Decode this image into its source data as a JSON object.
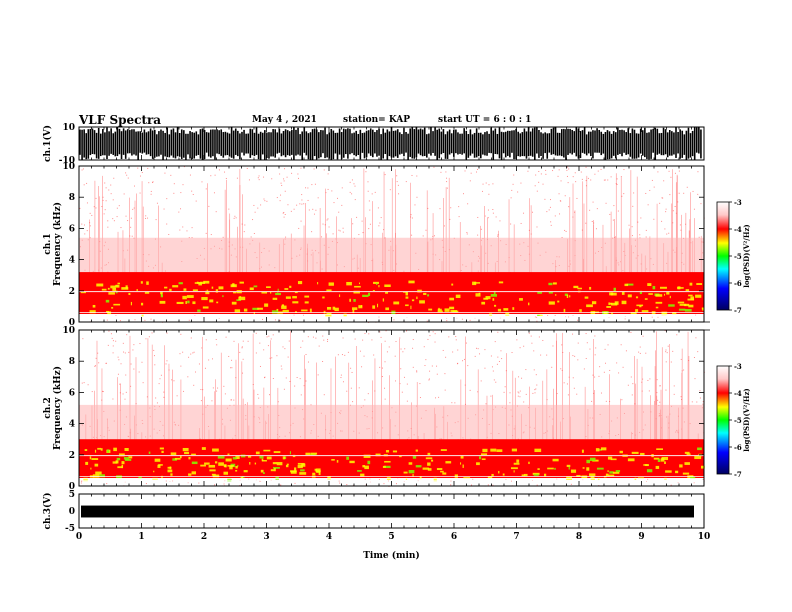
{
  "header": {
    "title": "VLF Spectra",
    "date": "May 4 , 2021",
    "station": "station= KAP",
    "start_time": "start UT =  6 : 0 : 1"
  },
  "chart_data": [
    {
      "type": "line",
      "name": "ch1-waveform",
      "ylabel": "ch.1(V)",
      "ylim": [
        -10,
        10
      ],
      "yticks": [
        "10",
        "-10"
      ],
      "xlim": [
        0,
        10
      ]
    },
    {
      "type": "heatmap",
      "name": "ch1-spectrogram",
      "ylabel_line1": "ch.1",
      "ylabel_line2": "Frequency (kHz)",
      "ylim": [
        0,
        10
      ],
      "yticks": [
        "0",
        "2",
        "4",
        "6",
        "8",
        "10"
      ],
      "xlim": [
        0,
        10
      ],
      "intense_bands_khz": [
        [
          0.5,
          3.2
        ]
      ],
      "colorbar": {
        "label": "log(PSD)(V²/Hz)",
        "range": [
          -7,
          -3
        ],
        "ticks": [
          "-3",
          "-4",
          "-5",
          "-6",
          "-7"
        ]
      }
    },
    {
      "type": "heatmap",
      "name": "ch2-spectrogram",
      "ylabel_line1": "ch.2",
      "ylabel_line2": "Frequency (kHz)",
      "ylim": [
        0,
        10
      ],
      "yticks": [
        "0",
        "2",
        "4",
        "6",
        "8",
        "10"
      ],
      "xlim": [
        0,
        10
      ],
      "intense_bands_khz": [
        [
          0.5,
          3.0
        ]
      ],
      "colorbar": {
        "label": "log(PSD)(V²/Hz)",
        "range": [
          -7,
          -3
        ],
        "ticks": [
          "-3",
          "-4",
          "-5",
          "-6",
          "-7"
        ]
      }
    },
    {
      "type": "line",
      "name": "ch3-waveform",
      "ylabel": "ch.3(V)",
      "ylim": [
        -5,
        5
      ],
      "yticks": [
        "5",
        "0",
        "-5"
      ],
      "xlim": [
        0,
        10
      ],
      "xlabel": "Time (min)",
      "xticks": [
        "0",
        "1",
        "2",
        "3",
        "4",
        "5",
        "6",
        "7",
        "8",
        "9",
        "10"
      ]
    }
  ],
  "colors": {
    "axis": "#000000",
    "psd_high": "#ffff00",
    "psd_mid": "#ff0000",
    "psd_low": "#ffffff"
  }
}
